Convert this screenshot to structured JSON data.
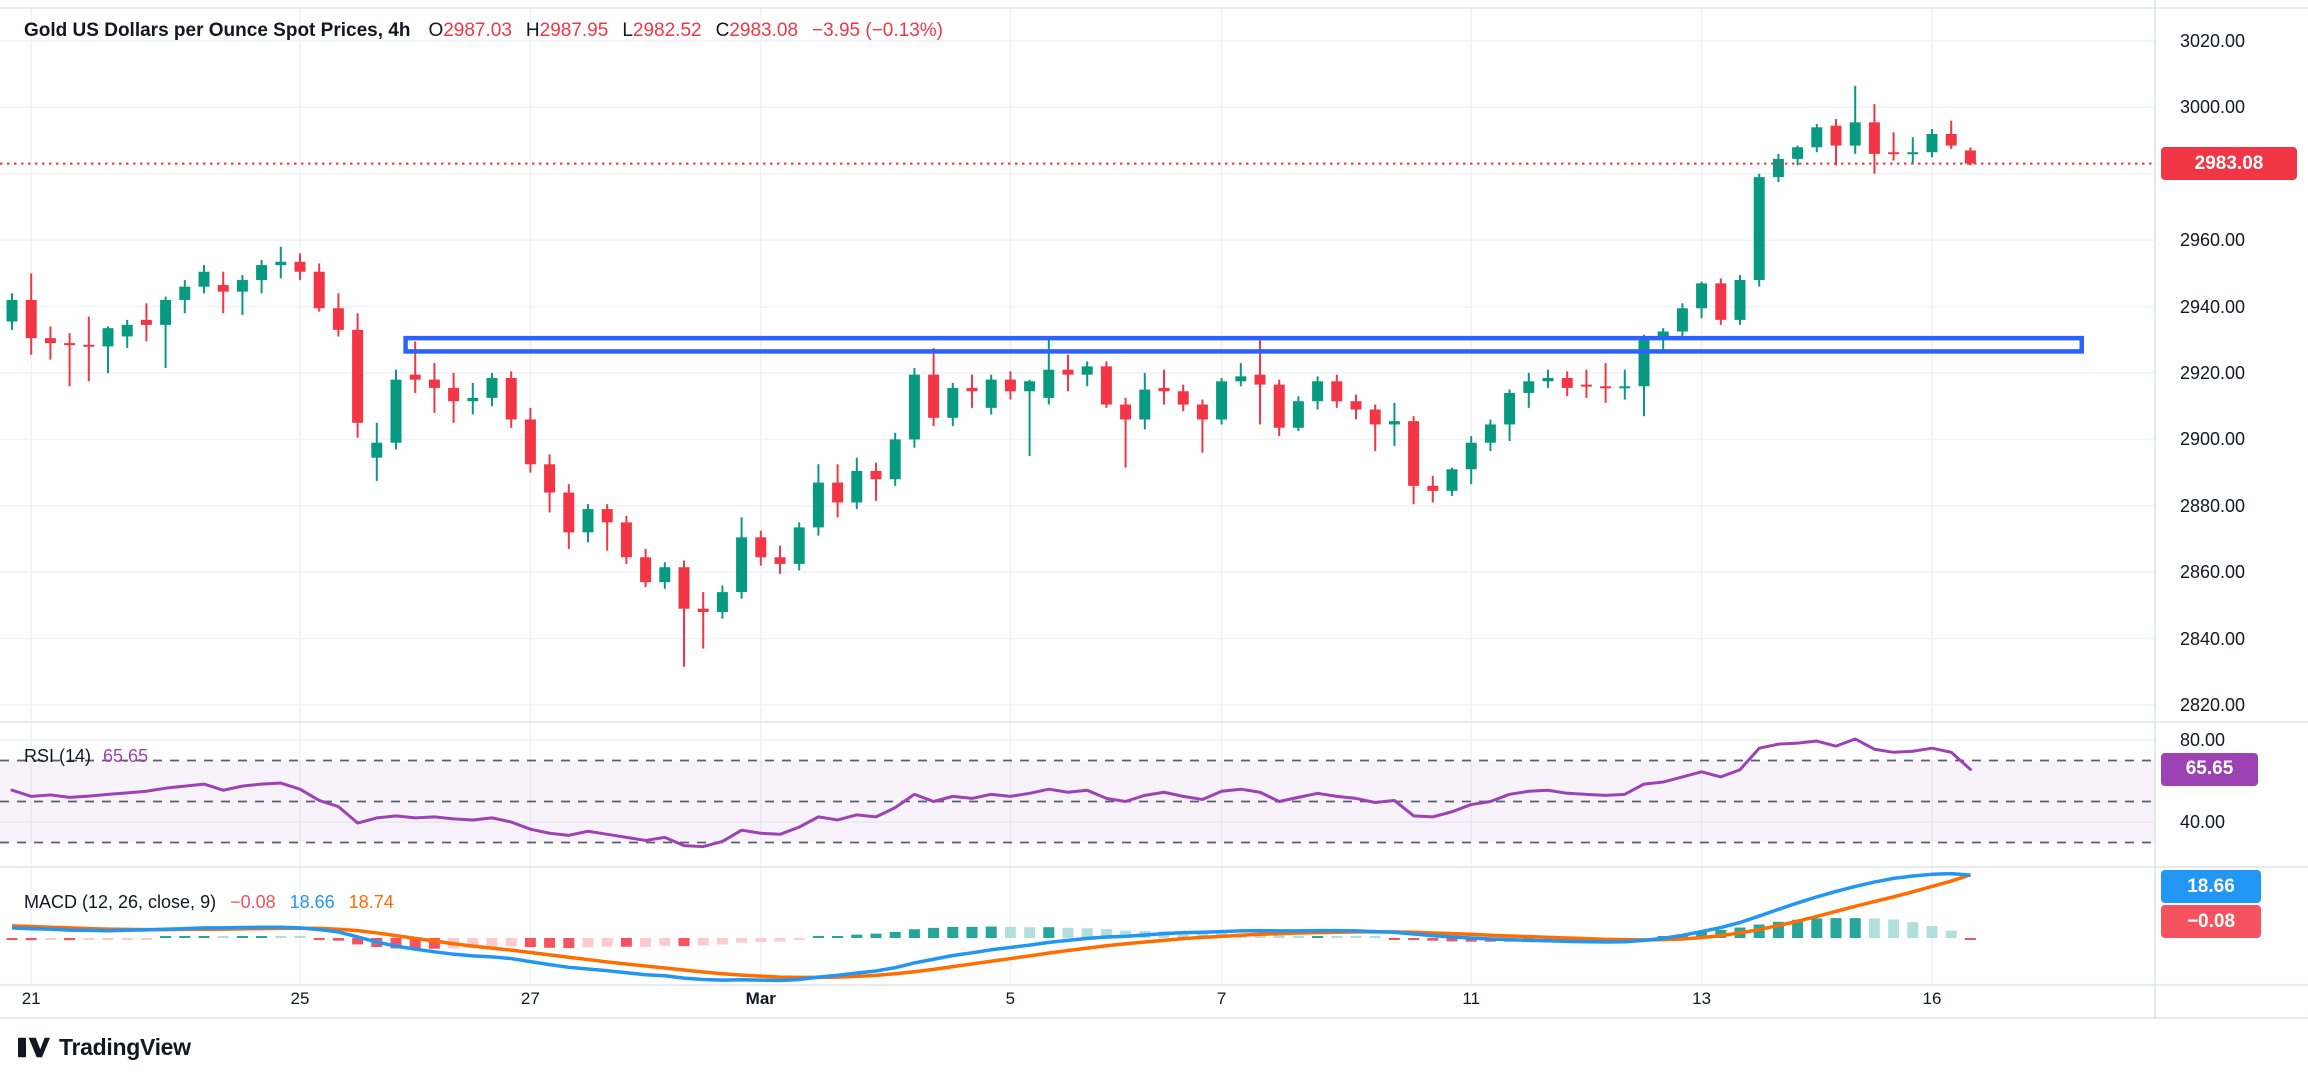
{
  "header": {
    "title": "Gold US Dollars per Ounce Spot Prices, 4h",
    "o_label": "O",
    "o": "2987.03",
    "h_label": "H",
    "h": "2987.95",
    "l_label": "L",
    "l": "2982.52",
    "c_label": "C",
    "c": "2983.08",
    "change": "−3.95 (−0.13%)"
  },
  "rsi_legend": {
    "label": "RSI (14)",
    "value": "65.65"
  },
  "macd_legend": {
    "label": "MACD (12, 26, close, 9)",
    "hist": "−0.08",
    "macd": "18.66",
    "signal": "18.74"
  },
  "badges": {
    "price": "2983.08",
    "rsi": "65.65",
    "macd_blue": "18.66",
    "macd_red": "−0.08"
  },
  "logo": {
    "text": "TradingView"
  },
  "colors": {
    "up": "#089981",
    "down": "#F23645",
    "zone": "#2962FF",
    "price_line": "#F23645",
    "rsi_line": "#9C42B5",
    "rsi_band": "rgba(156,66,181,0.07)",
    "rsi_dash": "#5A5E6B",
    "macd_line": "#2196F3",
    "signal_line": "#FF6D00",
    "hist_up": "#26A69A",
    "hist_up_weak": "#B2DFDB",
    "hist_down": "#F7525F",
    "hist_down_weak": "#FCCBCD",
    "grid": "#F0F2F6",
    "separator": "#E0E3EB",
    "axis_text": "#131722"
  },
  "chart_data": {
    "type": "candlestick",
    "title": "Gold US Dollars per Ounce Spot Prices",
    "timeframe": "4h",
    "ylim": [
      2815,
      3034
    ],
    "price_axis_labels": [
      "3020.00",
      "3000.00",
      "2980.00",
      "2960.00",
      "2940.00",
      "2920.00",
      "2900.00",
      "2880.00",
      "2860.00",
      "2840.00",
      "2820.00"
    ],
    "x_ticks": [
      {
        "label": "21",
        "index": 1,
        "bold": false
      },
      {
        "label": "25",
        "index": 15,
        "bold": false
      },
      {
        "label": "27",
        "index": 27,
        "bold": false
      },
      {
        "label": "Mar",
        "index": 39,
        "bold": true
      },
      {
        "label": "5",
        "index": 52,
        "bold": false
      },
      {
        "label": "7",
        "index": 63,
        "bold": false
      },
      {
        "label": "11",
        "index": 76,
        "bold": false
      },
      {
        "label": "13",
        "index": 88,
        "bold": false
      },
      {
        "label": "16",
        "index": 100,
        "bold": false
      }
    ],
    "price_line": 2983.08,
    "resistance_zone": {
      "top": 2930.5,
      "bottom": 2926.5,
      "start_index": 20.5,
      "end_index": 107.8
    },
    "candles": [
      [
        2935.5,
        2944,
        2933,
        2942
      ],
      [
        2942,
        2950,
        2925.5,
        2930.5
      ],
      [
        2930.5,
        2934,
        2924,
        2929
      ],
      [
        2929,
        2932,
        2916,
        2928.5
      ],
      [
        2928.5,
        2937,
        2917.5,
        2928
      ],
      [
        2928,
        2934,
        2920,
        2933.5
      ],
      [
        2931,
        2936,
        2927.5,
        2934.5
      ],
      [
        2936,
        2941,
        2929.5,
        2934.5
      ],
      [
        2934.5,
        2943,
        2921.5,
        2942
      ],
      [
        2942,
        2948,
        2938,
        2946
      ],
      [
        2946,
        2952.5,
        2944,
        2950.5
      ],
      [
        2946.5,
        2950.5,
        2938,
        2944.5
      ],
      [
        2944.5,
        2949.5,
        2937.5,
        2948
      ],
      [
        2948,
        2954,
        2944,
        2952.5
      ],
      [
        2952.5,
        2958,
        2948.5,
        2953.5
      ],
      [
        2953.5,
        2956,
        2948,
        2950.5
      ],
      [
        2950.5,
        2953,
        2938.5,
        2939.5
      ],
      [
        2939.5,
        2944,
        2931,
        2933
      ],
      [
        2933,
        2938,
        2900.5,
        2905
      ],
      [
        2894.5,
        2905,
        2887.5,
        2899
      ],
      [
        2899,
        2921,
        2897,
        2918
      ],
      [
        2919.5,
        2929.5,
        2914,
        2918
      ],
      [
        2918,
        2923,
        2908,
        2915.5
      ],
      [
        2915.5,
        2920,
        2905,
        2911.5
      ],
      [
        2911.5,
        2917,
        2907.5,
        2912.5
      ],
      [
        2912.5,
        2920,
        2910,
        2918.5
      ],
      [
        2918.5,
        2920.5,
        2903.5,
        2906
      ],
      [
        2906,
        2909.5,
        2890,
        2892.5
      ],
      [
        2892.5,
        2895.5,
        2878,
        2884
      ],
      [
        2884,
        2886.5,
        2867,
        2872
      ],
      [
        2872,
        2880.5,
        2869,
        2879
      ],
      [
        2879,
        2880.5,
        2866.5,
        2875
      ],
      [
        2875,
        2877,
        2862.5,
        2864.5
      ],
      [
        2864.5,
        2867,
        2855.5,
        2857
      ],
      [
        2857,
        2863,
        2855,
        2861.5
      ],
      [
        2861.5,
        2863.5,
        2831.5,
        2849
      ],
      [
        2849,
        2854,
        2837,
        2848
      ],
      [
        2848,
        2856,
        2846,
        2854
      ],
      [
        2854,
        2876.5,
        2852,
        2870.5
      ],
      [
        2870.5,
        2872.5,
        2862,
        2864.5
      ],
      [
        2864.5,
        2868,
        2859.5,
        2862.5
      ],
      [
        2862.5,
        2875,
        2860.5,
        2873.5
      ],
      [
        2873.5,
        2892.5,
        2871,
        2887
      ],
      [
        2887,
        2892.5,
        2876.5,
        2881
      ],
      [
        2881,
        2894.5,
        2879,
        2890.5
      ],
      [
        2890.5,
        2893,
        2881.5,
        2888
      ],
      [
        2888,
        2902,
        2886,
        2900
      ],
      [
        2900,
        2921.5,
        2897.5,
        2919.5
      ],
      [
        2919.5,
        2927.5,
        2904,
        2906.5
      ],
      [
        2906.5,
        2917,
        2904,
        2915.5
      ],
      [
        2915.5,
        2919.5,
        2909.5,
        2914.5
      ],
      [
        2909.5,
        2919.5,
        2907.5,
        2918
      ],
      [
        2918,
        2920.5,
        2912,
        2914.5
      ],
      [
        2914.5,
        2918,
        2895,
        2917.5
      ],
      [
        2912.5,
        2930.5,
        2910.5,
        2921
      ],
      [
        2921,
        2925.5,
        2914.5,
        2919.5
      ],
      [
        2919.5,
        2923.5,
        2916,
        2922
      ],
      [
        2922,
        2923.5,
        2909.5,
        2910.5
      ],
      [
        2910.5,
        2912.5,
        2891.5,
        2906
      ],
      [
        2906,
        2920,
        2903,
        2915
      ],
      [
        2915.5,
        2921,
        2910.5,
        2914.5
      ],
      [
        2914.5,
        2916.5,
        2908.5,
        2910.5
      ],
      [
        2910.5,
        2912,
        2896,
        2906
      ],
      [
        2906,
        2918.5,
        2904.5,
        2917.5
      ],
      [
        2917.5,
        2923,
        2916,
        2919
      ],
      [
        2919.5,
        2930.5,
        2904.5,
        2916.5
      ],
      [
        2916.5,
        2918,
        2901,
        2903.5
      ],
      [
        2903.5,
        2913,
        2902.5,
        2911.5
      ],
      [
        2911.5,
        2919,
        2909,
        2917.5
      ],
      [
        2917.5,
        2919.5,
        2909.5,
        2911.5
      ],
      [
        2911.5,
        2913.5,
        2906,
        2909
      ],
      [
        2909,
        2910.5,
        2896.5,
        2904.5
      ],
      [
        2904.5,
        2911,
        2898,
        2905.5
      ],
      [
        2905.5,
        2907,
        2880.5,
        2886
      ],
      [
        2886,
        2889,
        2881,
        2884.5
      ],
      [
        2884.5,
        2891.5,
        2883,
        2891
      ],
      [
        2891,
        2901,
        2886.5,
        2899
      ],
      [
        2899,
        2906,
        2896.5,
        2904.5
      ],
      [
        2904.5,
        2915,
        2899.5,
        2914
      ],
      [
        2914,
        2920,
        2909.5,
        2917.5
      ],
      [
        2917.5,
        2921,
        2915.5,
        2918.5
      ],
      [
        2918.5,
        2920.5,
        2913,
        2915.5
      ],
      [
        2916.5,
        2921,
        2912.5,
        2916
      ],
      [
        2916,
        2923,
        2911,
        2915.5
      ],
      [
        2915.5,
        2921,
        2912,
        2916
      ],
      [
        2916,
        2931.5,
        2907,
        2930.5
      ],
      [
        2930.5,
        2933.5,
        2927,
        2932.5
      ],
      [
        2932.5,
        2941,
        2930.5,
        2939.5
      ],
      [
        2939.5,
        2947.5,
        2936.5,
        2947
      ],
      [
        2947,
        2948.5,
        2934.5,
        2936
      ],
      [
        2936,
        2949.5,
        2934.5,
        2948
      ],
      [
        2948,
        2980,
        2946,
        2979
      ],
      [
        2979,
        2986,
        2977.5,
        2984.5
      ],
      [
        2984.5,
        2988.5,
        2982.5,
        2988
      ],
      [
        2988,
        2995,
        2986.5,
        2994
      ],
      [
        2994.5,
        2996.5,
        2982.5,
        2988.5
      ],
      [
        2988.5,
        3006.5,
        2986,
        2995.5
      ],
      [
        2995.5,
        3001,
        2980,
        2986
      ],
      [
        2986.5,
        2992.5,
        2984,
        2986
      ],
      [
        2986,
        2991,
        2983,
        2986.5
      ],
      [
        2986.5,
        2993.5,
        2985,
        2992
      ],
      [
        2992,
        2996,
        2987.5,
        2988.5
      ],
      [
        2987.03,
        2987.95,
        2982.52,
        2983.08
      ]
    ],
    "rsi": {
      "label": "RSI (14)",
      "value": 65.65,
      "levels": [
        70,
        50,
        30
      ],
      "axis_labels": [
        80,
        40
      ],
      "values": [
        55.5,
        52.5,
        53.2,
        52.0,
        52.6,
        53.5,
        54.2,
        55.0,
        56.5,
        57.5,
        58.5,
        55.5,
        57.5,
        58.5,
        59.0,
        56.0,
        50.5,
        47.5,
        39.5,
        42.0,
        43.0,
        42.0,
        42.5,
        41.5,
        41.0,
        42.0,
        40.0,
        36.5,
        34.5,
        33.5,
        35.5,
        34.0,
        32.5,
        31.0,
        32.5,
        28.5,
        28.0,
        30.5,
        36.0,
        34.5,
        34.0,
        37.5,
        42.5,
        41.0,
        43.5,
        42.5,
        47.0,
        53.5,
        50.0,
        52.5,
        51.5,
        53.5,
        52.5,
        54.0,
        56.0,
        54.5,
        55.5,
        51.5,
        50.0,
        53.0,
        54.5,
        52.5,
        51.0,
        55.0,
        56.0,
        54.5,
        50.0,
        52.0,
        54.0,
        52.5,
        51.5,
        49.5,
        50.5,
        43.0,
        42.5,
        45.0,
        48.5,
        50.0,
        53.5,
        55.0,
        55.5,
        54.0,
        53.5,
        53.0,
        53.5,
        58.5,
        59.5,
        62.0,
        64.5,
        62.0,
        65.5,
        76.0,
        78.0,
        78.5,
        79.5,
        77.0,
        80.5,
        75.5,
        74.0,
        74.5,
        76.0,
        74.0,
        65.65
      ]
    },
    "macd": {
      "label": "MACD (12, 26, close, 9)",
      "hist_value": -0.08,
      "macd_value": 18.66,
      "signal_value": 18.74,
      "macd_line": [
        3.0,
        2.75,
        2.65,
        2.35,
        2.25,
        2.15,
        2.3,
        2.4,
        2.6,
        2.8,
        3.0,
        3.0,
        3.1,
        3.2,
        3.2,
        3.0,
        2.5,
        1.8,
        0.3,
        -1.2,
        -2.4,
        -3.3,
        -4.1,
        -4.8,
        -5.3,
        -5.6,
        -6.1,
        -7.0,
        -7.9,
        -8.7,
        -9.2,
        -9.7,
        -10.3,
        -10.9,
        -11.2,
        -11.9,
        -12.3,
        -12.5,
        -12.4,
        -12.5,
        -12.6,
        -12.3,
        -11.6,
        -11.1,
        -10.4,
        -9.8,
        -8.8,
        -7.4,
        -6.3,
        -5.2,
        -4.4,
        -3.5,
        -2.8,
        -2.1,
        -1.3,
        -0.7,
        -0.1,
        0.3,
        0.5,
        0.9,
        1.3,
        1.6,
        1.7,
        1.9,
        2.1,
        2.2,
        2.1,
        2.1,
        2.2,
        2.2,
        2.1,
        1.9,
        1.7,
        1.2,
        0.7,
        0.3,
        0.0,
        -0.3,
        -0.5,
        -0.7,
        -0.8,
        -1.0,
        -1.1,
        -1.2,
        -1.1,
        -0.7,
        -0.1,
        0.8,
        1.9,
        3.1,
        4.6,
        6.5,
        8.5,
        10.4,
        12.2,
        13.8,
        15.3,
        16.6,
        17.7,
        18.4,
        18.9,
        19.1,
        18.66
      ],
      "signal_line": [
        3.6,
        3.4,
        3.2,
        3.0,
        2.8,
        2.65,
        2.55,
        2.5,
        2.5,
        2.55,
        2.6,
        2.65,
        2.7,
        2.8,
        2.85,
        2.9,
        2.85,
        2.6,
        2.2,
        1.5,
        0.7,
        -0.1,
        -0.9,
        -1.7,
        -2.4,
        -3.0,
        -3.6,
        -4.3,
        -5.0,
        -5.7,
        -6.4,
        -7.1,
        -7.7,
        -8.3,
        -8.9,
        -9.5,
        -10.1,
        -10.6,
        -11.0,
        -11.3,
        -11.6,
        -11.7,
        -11.7,
        -11.6,
        -11.4,
        -11.1,
        -10.6,
        -10.0,
        -9.3,
        -8.5,
        -7.7,
        -6.9,
        -6.1,
        -5.3,
        -4.5,
        -3.7,
        -3.0,
        -2.3,
        -1.7,
        -1.2,
        -0.7,
        -0.2,
        0.2,
        0.5,
        0.8,
        1.1,
        1.3,
        1.5,
        1.6,
        1.7,
        1.8,
        1.8,
        1.8,
        1.7,
        1.5,
        1.3,
        1.1,
        0.8,
        0.6,
        0.4,
        0.2,
        0.0,
        -0.2,
        -0.4,
        -0.5,
        -0.6,
        -0.5,
        -0.3,
        0.1,
        0.7,
        1.5,
        2.5,
        3.7,
        5.0,
        6.4,
        7.9,
        9.4,
        10.8,
        12.2,
        13.7,
        15.3,
        16.9,
        18.74
      ]
    }
  }
}
